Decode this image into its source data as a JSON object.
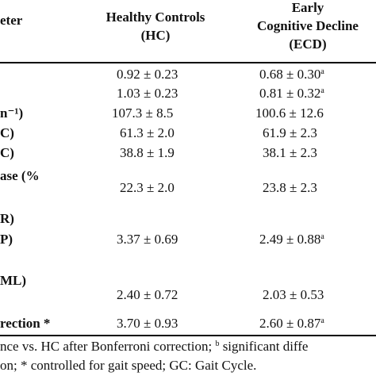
{
  "header": {
    "param_fragment": "eter",
    "hc_line1": "Healthy Controls",
    "hc_line2": "(HC)",
    "ecd_line1": "Early",
    "ecd_line2": "Cognitive Decline",
    "ecd_line3": "(ECD)"
  },
  "rows": [
    {
      "param": "",
      "hc": "0.92 ± 0.23",
      "ecd": "0.68 ± 0.30",
      "ecd_sup": "a"
    },
    {
      "param": "",
      "hc": "1.03 ± 0.23",
      "ecd": "0.81 ± 0.32",
      "ecd_sup": "a"
    },
    {
      "param": "n⁻¹)",
      "hc": "107.3 ± 8.5",
      "ecd": "100.6 ± 12.6",
      "ecd_sup": ""
    },
    {
      "param": "C)",
      "hc": "61.3 ± 2.0",
      "ecd": "61.9 ± 2.3",
      "ecd_sup": ""
    },
    {
      "param": "C)",
      "hc": "38.8 ± 1.9",
      "ecd": "38.1 ± 2.3",
      "ecd_sup": ""
    },
    {
      "param": "ase (%",
      "hc": "22.3 ± 2.0",
      "ecd": "23.8 ± 2.3",
      "ecd_sup": ""
    },
    {
      "param": "R)",
      "hc": "",
      "ecd": "",
      "ecd_sup": ""
    },
    {
      "param": "P)",
      "hc": "3.37 ± 0.69",
      "ecd": "2.49 ± 0.88",
      "ecd_sup": "a"
    },
    {
      "param": "ML)",
      "hc": "2.40 ± 0.72",
      "ecd": "2.03 ± 0.53",
      "ecd_sup": ""
    },
    {
      "param": "rection *",
      "hc": "3.70 ± 0.93",
      "ecd": "2.60 ± 0.87",
      "ecd_sup": "a"
    }
  ],
  "footnote": {
    "line1_a": "nce vs. HC after Bonferroni correction; ",
    "line1_sup": "b",
    "line1_b": " significant diffe",
    "line2": "on; * controlled for gait speed; GC: Gait Cycle."
  }
}
